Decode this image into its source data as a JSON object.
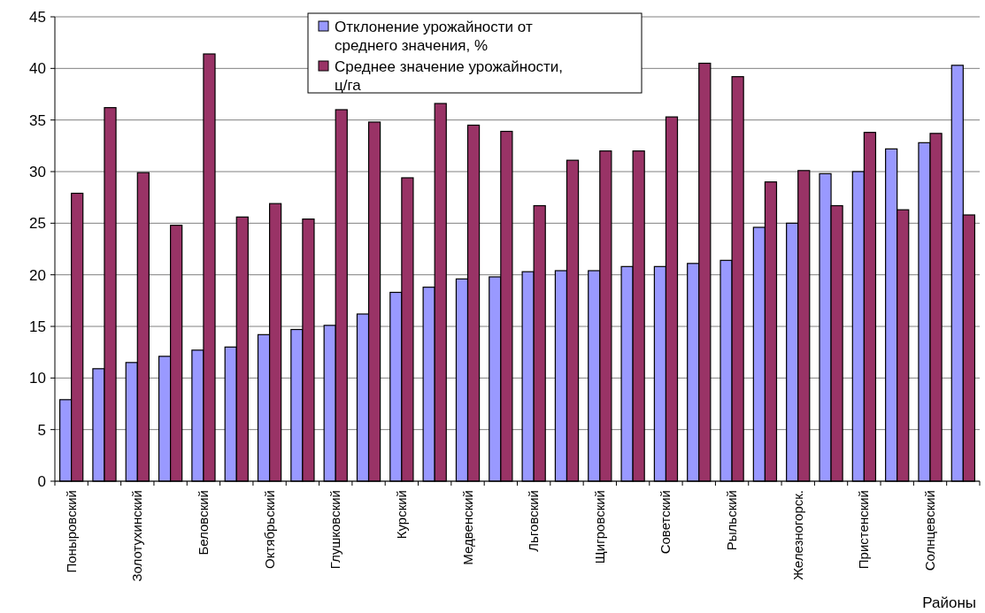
{
  "chart_data": {
    "type": "bar",
    "xlabel": "Районы",
    "categories": [
      "Поныровский",
      null,
      "Золотухинский",
      null,
      "Беловский",
      null,
      "Октябрьский",
      null,
      "Глушковский",
      null,
      "Курский",
      null,
      "Медвенский",
      null,
      "Льговский",
      null,
      "Щигровский",
      null,
      "Советский",
      null,
      "Рыльский",
      null,
      "Железногорск.",
      null,
      "Пристенский",
      null,
      "Солнцевский",
      null
    ],
    "series": [
      {
        "name": "Отклонение урожайности от среднего значения, %",
        "color": "#9999ff",
        "values": [
          7.9,
          10.9,
          11.5,
          12.1,
          12.7,
          13.0,
          14.2,
          14.7,
          15.1,
          16.2,
          18.3,
          18.8,
          19.6,
          19.8,
          20.3,
          20.4,
          20.4,
          20.8,
          20.8,
          21.1,
          21.4,
          24.6,
          25.0,
          29.8,
          30.0,
          32.2,
          32.8,
          40.3
        ]
      },
      {
        "name": "Среднее значение урожайности, ц/га",
        "color": "#993366",
        "values": [
          27.9,
          36.2,
          29.9,
          24.8,
          41.4,
          25.6,
          26.9,
          25.4,
          36.0,
          34.8,
          29.4,
          36.6,
          34.5,
          33.9,
          26.7,
          31.1,
          32.0,
          32.0,
          35.3,
          40.5,
          39.2,
          29.0,
          30.1,
          26.7,
          33.8,
          26.3,
          33.7,
          25.8
        ]
      }
    ],
    "ylim": [
      0,
      45
    ],
    "yticks": [
      0,
      5,
      10,
      15,
      20,
      25,
      30,
      35,
      40,
      45
    ],
    "grid": "y",
    "legend": "top"
  }
}
